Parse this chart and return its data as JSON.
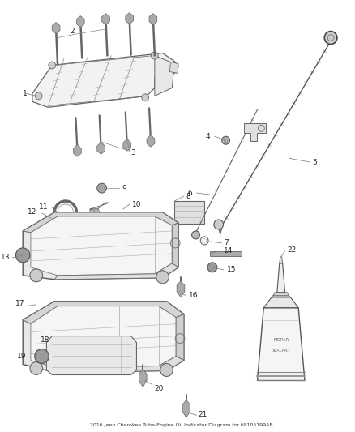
{
  "title": "2016 Jeep Cherokee Tube-Engine Oil Indicator Diagram for 68105199AB",
  "bg": "#ffffff",
  "lc": "#555555",
  "fig_w": 4.38,
  "fig_h": 5.33,
  "dpi": 100,
  "label_fs": 6.5,
  "line_color": "#888888",
  "part_color": "#666666",
  "part_fill": "#dddddd",
  "part_edge": "#555555"
}
